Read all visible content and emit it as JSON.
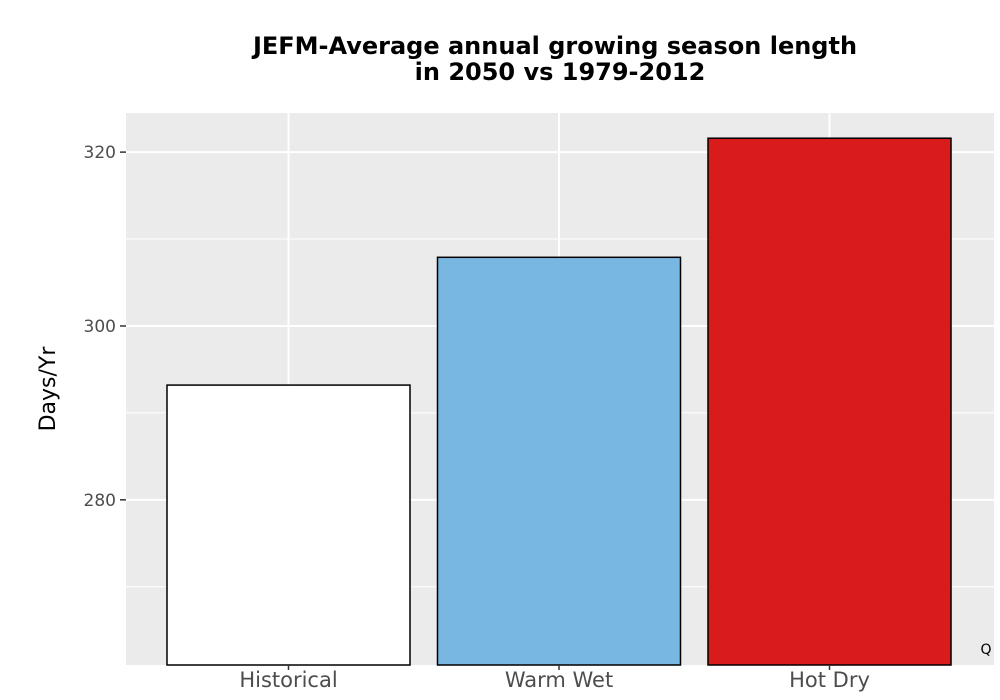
{
  "chart_data": {
    "type": "bar",
    "title_lines": [
      "JEFM-Average annual growing season length",
      "in 2050 vs 1979-2012"
    ],
    "xlabel": "",
    "ylabel": "Days/Yr",
    "categories": [
      "Historical",
      "Warm Wet",
      "Hot Dry"
    ],
    "values": [
      293.2,
      307.9,
      321.6
    ],
    "colors": [
      "#ffffff",
      "#78b7e1",
      "#d81b1b"
    ],
    "bar_outline": "#000000",
    "ylim": [
      261,
      324.5
    ],
    "yticks": [
      280,
      300,
      320
    ],
    "grid": true,
    "panel_background": "#ebebeb",
    "corner_label": "Q"
  }
}
